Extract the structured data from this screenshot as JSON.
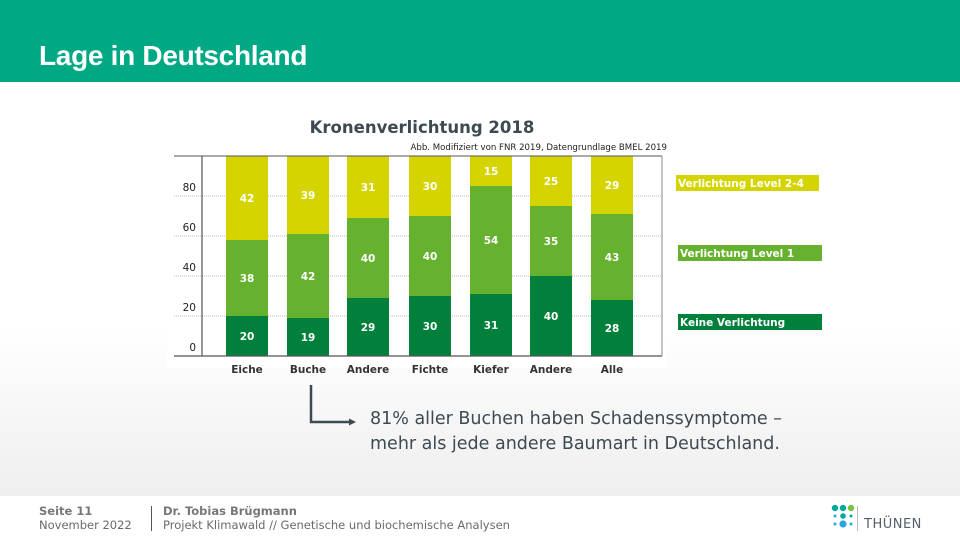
{
  "header": {
    "title": "Lage in Deutschland"
  },
  "colors": {
    "header_bg": "#00a984",
    "level_2_4": "#d6d400",
    "level_1": "#66b22f",
    "keine": "#00803b"
  },
  "chart_data": {
    "type": "bar",
    "stacked": true,
    "title": "Kronenverlichtung  2018",
    "subtitle": "Abb. Modifiziert von FNR 2019, Datengrundlage BMEL 2019",
    "xlabel": "",
    "ylabel": "",
    "ylim": [
      0,
      100
    ],
    "yticks": [
      0,
      20,
      40,
      60,
      80
    ],
    "grid": true,
    "legend_position": "right",
    "categories": [
      "Eiche",
      "Buche",
      "Andere",
      "Fichte",
      "Kiefer",
      "Andere",
      "Alle"
    ],
    "series": [
      {
        "name": "Keine Verlichtung",
        "color": "#00803b",
        "values": [
          20,
          19,
          29,
          30,
          31,
          40,
          28
        ]
      },
      {
        "name": "Verlichtung Level 1",
        "color": "#66b22f",
        "values": [
          38,
          42,
          40,
          40,
          54,
          35,
          43
        ]
      },
      {
        "name": "Verlichtung Level 2-4",
        "color": "#d6d400",
        "values": [
          42,
          39,
          31,
          30,
          15,
          25,
          29
        ]
      }
    ],
    "legend": [
      "Verlichtung Level 2-4",
      "Verlichtung Level 1",
      "Keine Verlichtung"
    ]
  },
  "callout": {
    "line1": "81% aller Buchen haben Schadenssymptome –",
    "line2": "mehr als jede andere Baumart in Deutschland."
  },
  "footer": {
    "page": "Seite 11",
    "date": "November 2022",
    "author": "Dr. Tobias Brügmann",
    "project": "Projekt Klimawald // Genetische und biochemische Analysen",
    "logo_text": "THÜNEN"
  }
}
